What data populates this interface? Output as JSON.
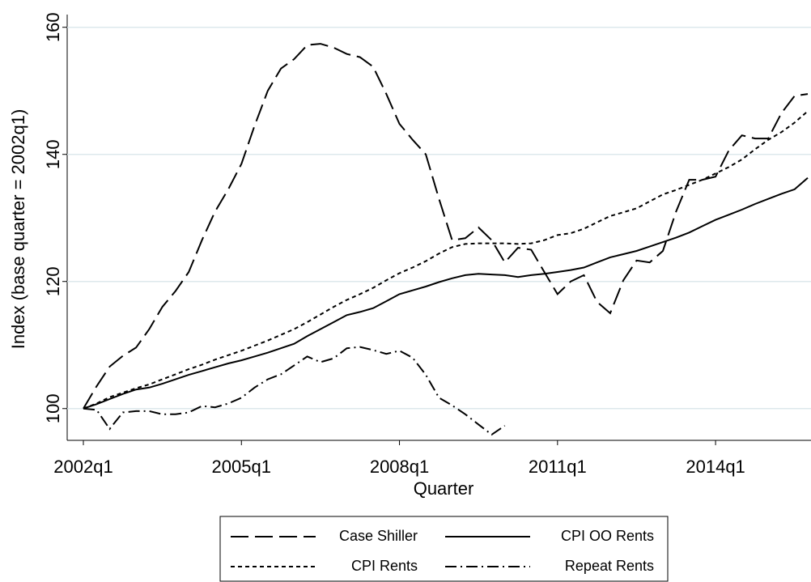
{
  "chart_data": {
    "type": "line",
    "x_label": "Quarter",
    "y_label": "Index (base quarter = 2002q1)",
    "categories": [
      "2002q1",
      null,
      null,
      null,
      null,
      null,
      null,
      null,
      null,
      null,
      null,
      null,
      "2005q1",
      null,
      null,
      null,
      null,
      null,
      null,
      null,
      null,
      null,
      null,
      null,
      "2008q1",
      null,
      null,
      null,
      null,
      null,
      null,
      null,
      null,
      null,
      null,
      null,
      "2011q1",
      null,
      null,
      null,
      null,
      null,
      null,
      null,
      null,
      null,
      null,
      null,
      "2014q1",
      null,
      null,
      null,
      null,
      null,
      null,
      null
    ],
    "ylim": [
      95,
      162
    ],
    "yticks": [
      100,
      120,
      140,
      160
    ],
    "grid": true,
    "series": [
      {
        "name": "Case Shiller",
        "color": "#000000",
        "dash": "22 8",
        "values": [
          100,
          103.5,
          106.6,
          108.3,
          109.6,
          112.5,
          116,
          118.5,
          121.5,
          126.5,
          131,
          134.5,
          138.5,
          144.5,
          150,
          153.5,
          155,
          157.2,
          157.4,
          156.8,
          155.8,
          155.3,
          153.8,
          149.5,
          144.8,
          142.3,
          140,
          133,
          126.5,
          126.8,
          128.5,
          126.5,
          123,
          125.3,
          125,
          121.5,
          118,
          120,
          121,
          116.8,
          115,
          120.2,
          123.3,
          123,
          124.8,
          131,
          136,
          136,
          136.5,
          140.6,
          143,
          142.5,
          142.5,
          146.5,
          149.2,
          149.5
        ]
      },
      {
        "name": "CPI OO Rents",
        "color": "#000000",
        "dash": "none",
        "values": [
          100,
          100.7,
          101.5,
          102.3,
          103,
          103.3,
          103.9,
          104.6,
          105.3,
          105.9,
          106.5,
          107.1,
          107.6,
          108.2,
          108.8,
          109.5,
          110.2,
          111.4,
          112.5,
          113.6,
          114.7,
          115.2,
          115.8,
          116.9,
          118,
          118.6,
          119.2,
          119.9,
          120.5,
          121,
          121.2,
          121.1,
          121,
          120.7,
          121,
          121.2,
          121.5,
          121.8,
          122.2,
          123,
          123.8,
          124.3,
          124.8,
          125.5,
          126.2,
          126.9,
          127.7,
          128.7,
          129.7,
          130.5,
          131.3,
          132.2,
          133,
          133.8,
          134.5,
          136.3
        ]
      },
      {
        "name": "CPI Rents",
        "color": "#000000",
        "dash": "5 4",
        "values": [
          100,
          100.8,
          101.8,
          102.5,
          103.2,
          103.8,
          104.6,
          105.4,
          106.2,
          106.9,
          107.7,
          108.4,
          109.1,
          109.9,
          110.7,
          111.6,
          112.5,
          113.6,
          114.8,
          116,
          117.1,
          118,
          119,
          120.2,
          121.3,
          122.2,
          123.2,
          124.4,
          125.4,
          125.9,
          126,
          126,
          126,
          125.9,
          126,
          126.5,
          127.3,
          127.6,
          128.3,
          129.3,
          130.3,
          130.9,
          131.5,
          132.6,
          133.7,
          134.4,
          135.2,
          136,
          137,
          138,
          139.2,
          140.8,
          142.3,
          143.5,
          145,
          146.8
        ]
      },
      {
        "name": "Repeat Rents",
        "color": "#000000",
        "dash": "14 5 2 5",
        "values": [
          100,
          99.8,
          96.8,
          99.4,
          99.6,
          99.6,
          99.1,
          99.1,
          99.4,
          100.4,
          100.2,
          100.8,
          101.7,
          103.3,
          104.6,
          105.4,
          106.8,
          108.2,
          107.3,
          107.9,
          109.5,
          109.7,
          109.2,
          108.6,
          109.1,
          108,
          105.3,
          101.7,
          100.5,
          99.1,
          97.5,
          95.9,
          97.3,
          null,
          null,
          null,
          null,
          null,
          null,
          null,
          null,
          null,
          null,
          null,
          null,
          null,
          null,
          null,
          null,
          null,
          null,
          null,
          null,
          null,
          null,
          null
        ]
      }
    ]
  }
}
